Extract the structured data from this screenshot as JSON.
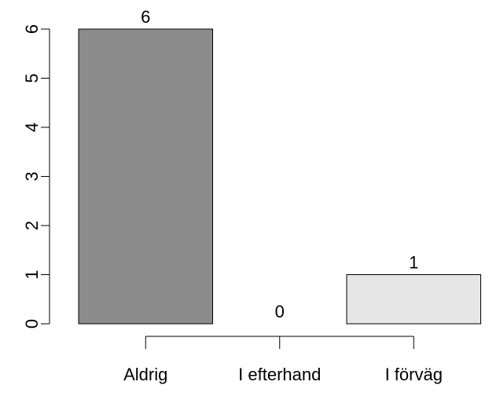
{
  "chart_data": {
    "type": "bar",
    "categories": [
      "Aldrig",
      "I efterhand",
      "I förväg"
    ],
    "values": [
      6,
      0,
      1
    ],
    "data_labels": [
      "6",
      "0",
      "1"
    ],
    "ylim": [
      0,
      6
    ],
    "y_ticks": [
      "0",
      "1",
      "2",
      "3",
      "4",
      "5",
      "6"
    ],
    "grid": false,
    "colors": [
      "#8c8c8c",
      "#bdbdbd",
      "#e6e6e6"
    ]
  }
}
